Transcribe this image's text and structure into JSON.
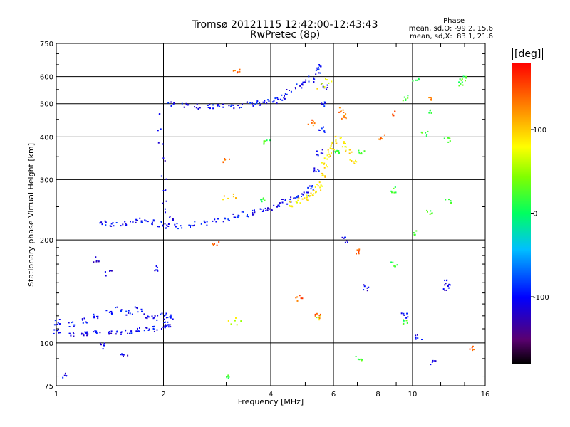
{
  "chart_data": {
    "type": "scatter",
    "title": "Tromsø 20121115 12:42:00-12:43:43",
    "subtitle": "RwPretec (8p)",
    "xlabel": "Frequency [MHz]",
    "ylabel": "Stationary phase Virtual Height [km]",
    "x_scale": "log",
    "y_scale": "log",
    "xlim": [
      1,
      16
    ],
    "ylim": [
      75,
      750
    ],
    "x_ticks": [
      "1",
      "2",
      "4",
      "6",
      "8",
      "10",
      "16"
    ],
    "x_tick_values": [
      1,
      2,
      4,
      6,
      8,
      10,
      16
    ],
    "y_ticks": [
      "75",
      "100",
      "200",
      "300",
      "400",
      "500",
      "600",
      "750"
    ],
    "y_tick_values": [
      75,
      100,
      200,
      300,
      400,
      500,
      600,
      750
    ],
    "grid": true,
    "colorbar": {
      "label": "[deg]",
      "range": [
        -180,
        180
      ],
      "ticks": [
        "100",
        "0",
        "-100"
      ],
      "tick_values": [
        100,
        0,
        -100
      ]
    },
    "stats": {
      "heading": "Phase",
      "o_line": "mean, sd,O: -99.2, 15.6",
      "x_line": "mean, sd,X:  83.1, 21.6"
    },
    "traces": [
      {
        "name": "",
        "phase": -105,
        "points": [
          [
            1.0,
            108
          ],
          [
            1.1,
            106
          ],
          [
            1.2,
            106
          ],
          [
            1.3,
            107
          ],
          [
            1.4,
            107
          ],
          [
            1.5,
            108
          ],
          [
            1.6,
            108
          ],
          [
            1.7,
            109
          ],
          [
            1.8,
            109
          ],
          [
            1.9,
            110
          ],
          [
            2.0,
            111
          ],
          [
            2.05,
            112
          ]
        ]
      },
      {
        "name": "",
        "phase": -100,
        "points": [
          [
            1.0,
            115
          ],
          [
            1.1,
            113
          ],
          [
            1.2,
            116
          ],
          [
            1.3,
            120
          ],
          [
            1.4,
            123
          ],
          [
            1.5,
            125
          ],
          [
            1.6,
            122
          ],
          [
            1.7,
            125
          ],
          [
            1.8,
            120
          ],
          [
            1.9,
            118
          ],
          [
            2.0,
            120
          ],
          [
            2.1,
            119
          ]
        ]
      },
      {
        "name": "",
        "phase": -100,
        "points": [
          [
            1.35,
            225
          ],
          [
            1.45,
            222
          ],
          [
            1.55,
            224
          ],
          [
            1.65,
            225
          ],
          [
            1.75,
            228
          ],
          [
            1.85,
            225
          ],
          [
            1.95,
            222
          ],
          [
            2.05,
            220
          ],
          [
            2.2,
            220
          ],
          [
            2.4,
            222
          ],
          [
            2.6,
            224
          ],
          [
            2.8,
            227
          ],
          [
            3.0,
            230
          ],
          [
            3.2,
            234
          ],
          [
            3.4,
            237
          ],
          [
            3.6,
            240
          ],
          [
            3.8,
            244
          ],
          [
            4.0,
            248
          ],
          [
            4.2,
            253
          ],
          [
            4.4,
            258
          ],
          [
            4.6,
            262
          ],
          [
            4.8,
            267
          ],
          [
            5.0,
            272
          ],
          [
            5.2,
            285
          ],
          [
            5.4,
            320
          ],
          [
            5.5,
            360
          ],
          [
            5.55,
            420
          ],
          [
            5.6,
            500
          ],
          [
            5.65,
            560
          ]
        ]
      },
      {
        "name": "",
        "phase": -110,
        "points": [
          [
            1.95,
            470
          ],
          [
            1.97,
            420
          ],
          [
            1.98,
            380
          ],
          [
            1.99,
            340
          ],
          [
            2.0,
            305
          ],
          [
            2.01,
            280
          ],
          [
            2.03,
            260
          ],
          [
            2.05,
            245
          ],
          [
            2.08,
            235
          ],
          [
            2.1,
            228
          ]
        ]
      },
      {
        "name": "",
        "phase": -100,
        "points": [
          [
            2.1,
            500
          ],
          [
            2.3,
            495
          ],
          [
            2.5,
            490
          ],
          [
            2.7,
            492
          ],
          [
            2.9,
            495
          ],
          [
            3.1,
            493
          ],
          [
            3.3,
            495
          ],
          [
            3.5,
            497
          ],
          [
            3.7,
            500
          ],
          [
            3.9,
            505
          ],
          [
            4.1,
            510
          ],
          [
            4.3,
            520
          ],
          [
            4.5,
            540
          ],
          [
            4.8,
            560
          ],
          [
            5.0,
            575
          ],
          [
            5.2,
            590
          ],
          [
            5.4,
            620
          ],
          [
            5.5,
            640
          ]
        ]
      },
      {
        "name": "",
        "phase": 90,
        "points": [
          [
            4.6,
            255
          ],
          [
            4.8,
            260
          ],
          [
            5.0,
            265
          ],
          [
            5.2,
            272
          ],
          [
            5.4,
            280
          ],
          [
            5.5,
            290
          ],
          [
            5.6,
            310
          ],
          [
            5.7,
            330
          ],
          [
            5.8,
            350
          ],
          [
            5.9,
            365
          ],
          [
            6.0,
            380
          ],
          [
            6.2,
            395
          ],
          [
            6.4,
            380
          ],
          [
            6.6,
            360
          ],
          [
            6.8,
            340
          ]
        ]
      },
      {
        "name": "",
        "phase": 80,
        "points": [
          [
            5.5,
            560
          ],
          [
            5.6,
            570
          ],
          [
            5.7,
            580
          ],
          [
            5.8,
            590
          ]
        ]
      },
      {
        "name": "",
        "phase": 100,
        "points": [
          [
            3.0,
            265
          ],
          [
            3.1,
            268
          ],
          [
            3.2,
            270
          ]
        ]
      },
      {
        "name": "",
        "phase": 70,
        "points": [
          [
            3.1,
            115
          ],
          [
            3.2,
            114
          ],
          [
            3.25,
            116
          ],
          [
            5.4,
            118
          ],
          [
            5.5,
            118
          ]
        ]
      },
      {
        "name": "",
        "phase": 20,
        "points": [
          [
            9.5,
            520
          ],
          [
            10.2,
            590
          ],
          [
            12.5,
            390
          ],
          [
            13.8,
            575
          ],
          [
            7.2,
            360
          ],
          [
            6.2,
            360
          ],
          [
            8.8,
            280
          ],
          [
            10.1,
            210
          ],
          [
            11.2,
            240
          ],
          [
            12.6,
            260
          ],
          [
            13.9,
            590
          ],
          [
            11.2,
            470
          ],
          [
            10.8,
            410
          ],
          [
            8.9,
            170
          ],
          [
            9.6,
            115
          ],
          [
            7.1,
            90
          ],
          [
            3.0,
            80
          ],
          [
            3.8,
            260
          ],
          [
            3.9,
            385
          ]
        ]
      },
      {
        "name": "",
        "phase": -110,
        "points": [
          [
            1.05,
            80
          ],
          [
            1.2,
            108
          ],
          [
            1.35,
            98
          ],
          [
            1.55,
            92
          ],
          [
            1.9,
            165
          ],
          [
            2.05,
            115
          ],
          [
            6.5,
            200
          ],
          [
            7.4,
            145
          ],
          [
            10.4,
            104
          ],
          [
            12.4,
            150
          ],
          [
            12.5,
            145
          ],
          [
            11.4,
            88
          ],
          [
            1.3,
            175
          ],
          [
            1.4,
            160
          ],
          [
            9.5,
            120
          ]
        ]
      },
      {
        "name": "",
        "phase": 140,
        "points": [
          [
            7.0,
            185
          ],
          [
            5.2,
            440
          ],
          [
            9.0,
            470
          ],
          [
            6.3,
            480
          ],
          [
            2.8,
            195
          ],
          [
            3.2,
            620
          ],
          [
            5.4,
            120
          ],
          [
            4.8,
            135
          ],
          [
            14.6,
            97
          ],
          [
            6.4,
            460
          ],
          [
            8.2,
            400
          ],
          [
            3.0,
            340
          ],
          [
            11.1,
            520
          ]
        ]
      }
    ]
  }
}
